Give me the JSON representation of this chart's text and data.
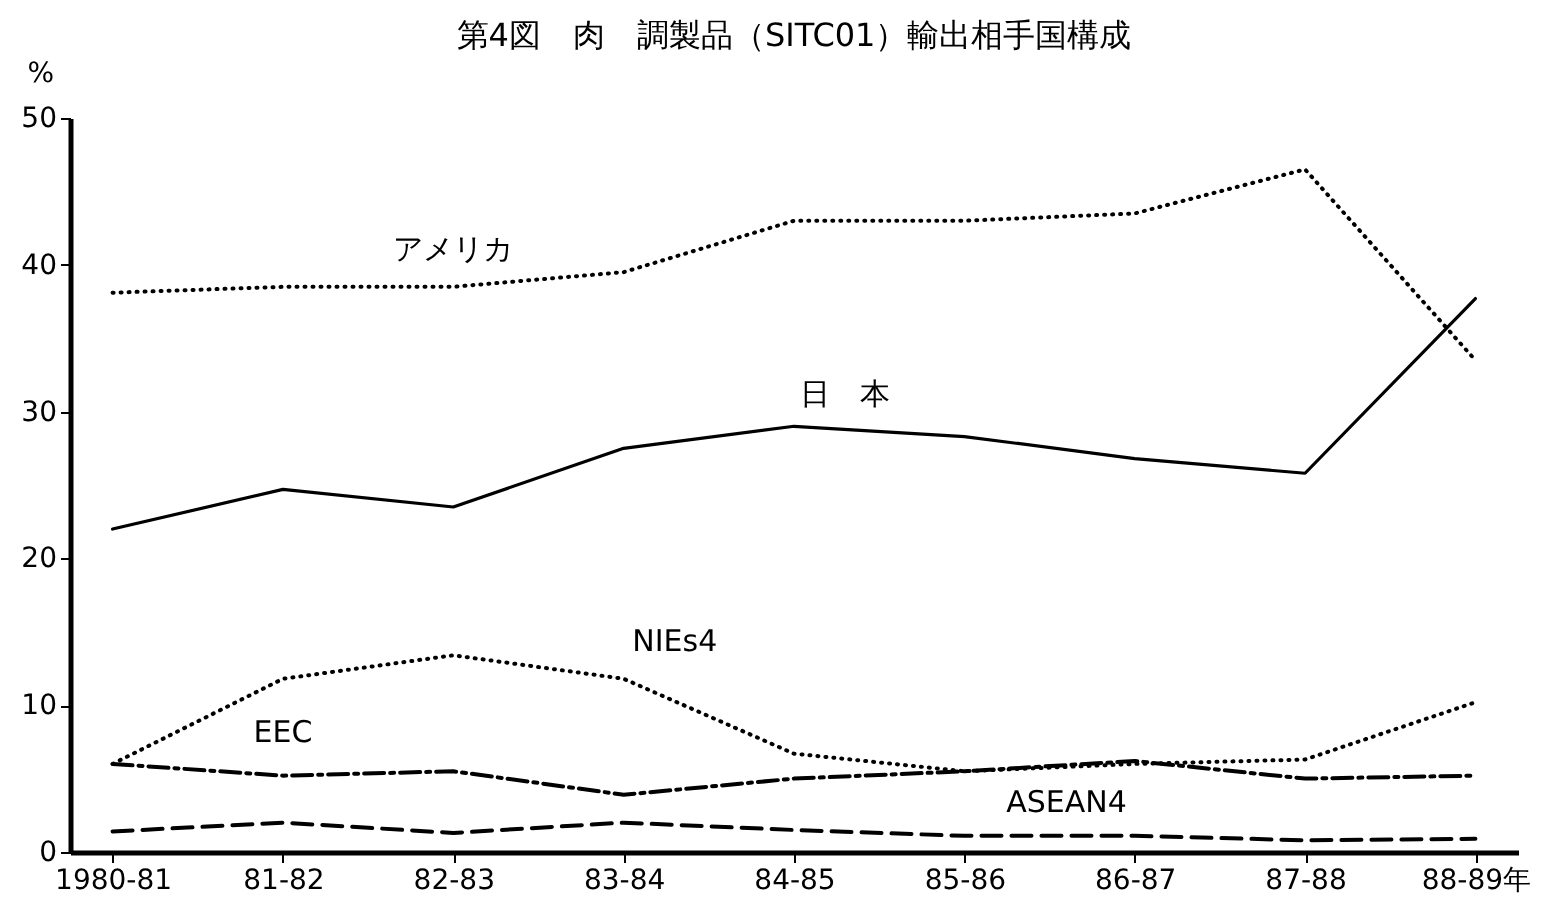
{
  "chart_data": {
    "type": "line",
    "title": "第4図　肉　調製品（SITC01）輸出相手国構成",
    "ylabel": "%",
    "categories": [
      "1980-81",
      "81-82",
      "82-83",
      "83-84",
      "84-85",
      "85-86",
      "86-87",
      "87-88",
      "88-89年"
    ],
    "ylim": [
      0,
      50
    ],
    "yticks": [
      0,
      10,
      20,
      30,
      40,
      50
    ],
    "grid": false,
    "marker": "none",
    "series": [
      {
        "name": "アメリカ",
        "color": "#000000",
        "line_style": "dotted",
        "values": [
          38.1,
          38.5,
          38.5,
          39.5,
          43,
          43,
          43.5,
          46.5,
          33.5
        ]
      },
      {
        "name": "日　本",
        "color": "#000000",
        "line_style": "solid",
        "values": [
          22,
          24.7,
          23.5,
          27.5,
          29,
          28.3,
          26.8,
          25.8,
          37.7
        ]
      },
      {
        "name": "NIEs4",
        "color": "#000000",
        "line_style": "dotted",
        "values": [
          6,
          11.8,
          13.4,
          11.8,
          6.7,
          5.5,
          6,
          6.3,
          10.2
        ]
      },
      {
        "name": "EEC",
        "color": "#000000",
        "line_style": "dashdot",
        "values": [
          6,
          5.2,
          5.5,
          3.9,
          5,
          5.5,
          6.2,
          5,
          5.2
        ]
      },
      {
        "name": "ASEAN4",
        "color": "#000000",
        "line_style": "dashed",
        "values": [
          1.4,
          2,
          1.3,
          2,
          1.5,
          1.1,
          1.1,
          0.8,
          0.9
        ]
      }
    ]
  }
}
